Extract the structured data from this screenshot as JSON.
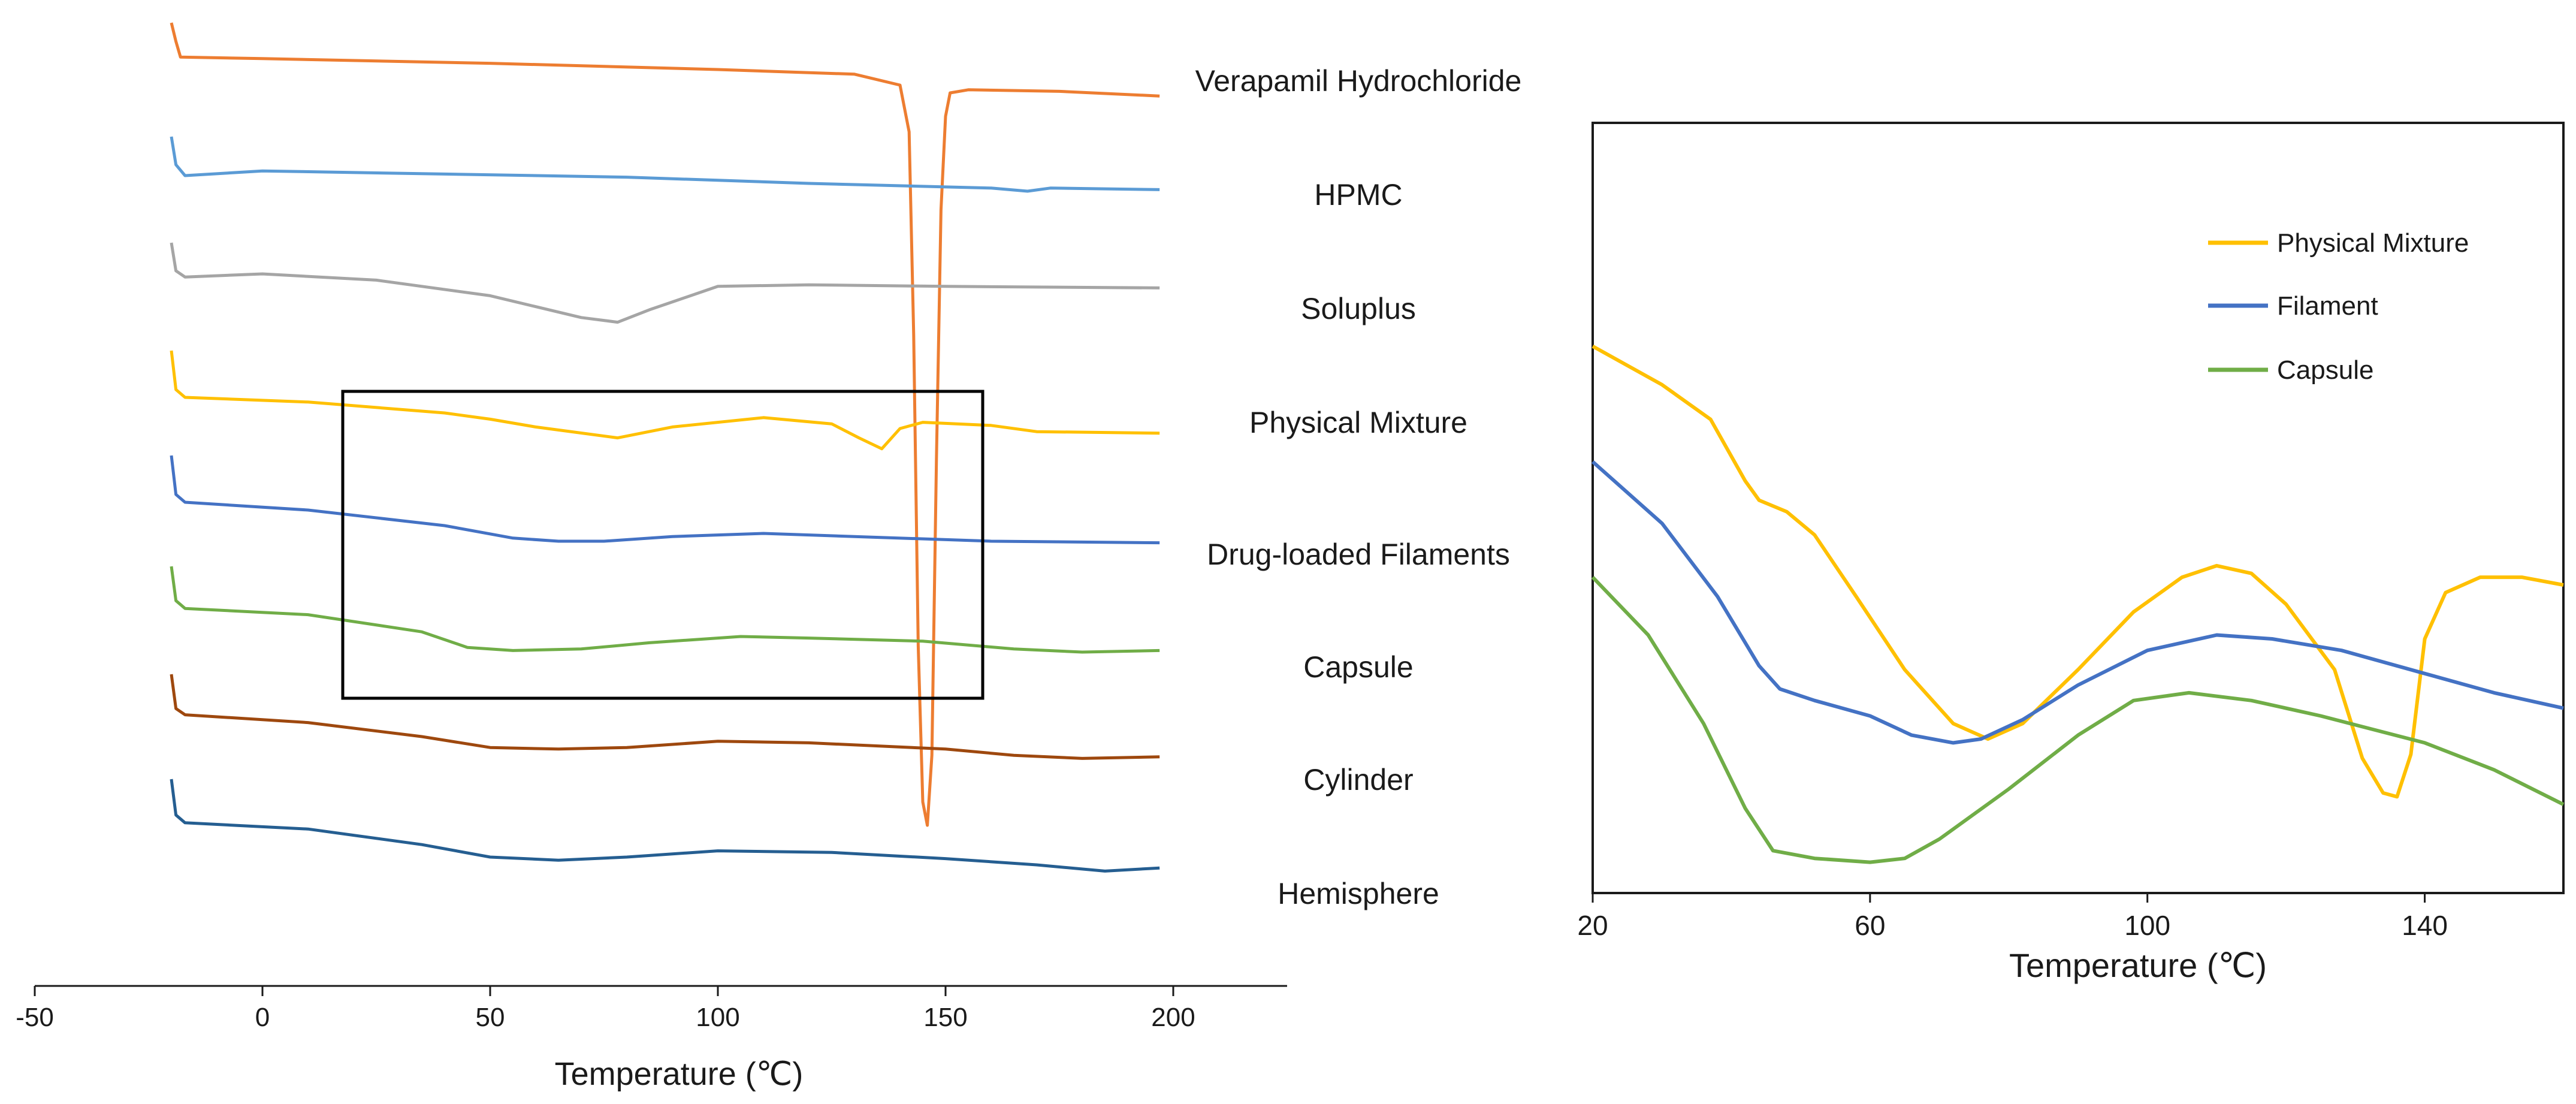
{
  "chart_data": [
    {
      "type": "line",
      "title": "",
      "xlabel": "Temperature (℃)",
      "ylabel": "",
      "xlim": [
        -50,
        225
      ],
      "xticks": [
        -50,
        0,
        50,
        100,
        150,
        200
      ],
      "grid": false,
      "box_region": {
        "x_range": [
          18,
          158
        ],
        "label": ""
      },
      "series": [
        {
          "name": "Verapamil Hydrochloride",
          "color": "#ED7D31",
          "points": [
            [
              -20,
              0
            ],
            [
              -19,
              -12
            ],
            [
              -18,
              -22
            ],
            [
              0,
              -23
            ],
            [
              50,
              -26
            ],
            [
              100,
              -30
            ],
            [
              130,
              -33
            ],
            [
              140,
              -40
            ],
            [
              142,
              -70
            ],
            [
              143,
              -200
            ],
            [
              144,
              -400
            ],
            [
              145,
              -500
            ],
            [
              146,
              -515
            ],
            [
              147,
              -470
            ],
            [
              148,
              -280
            ],
            [
              149,
              -120
            ],
            [
              150,
              -60
            ],
            [
              151,
              -45
            ],
            [
              155,
              -43
            ],
            [
              175,
              -44
            ],
            [
              197,
              -47
            ]
          ]
        },
        {
          "name": "HPMC",
          "color": "#5B9BD5",
          "points": [
            [
              -20,
              0
            ],
            [
              -19,
              -18
            ],
            [
              -17,
              -25
            ],
            [
              0,
              -22
            ],
            [
              40,
              -24
            ],
            [
              80,
              -26
            ],
            [
              100,
              -28
            ],
            [
              120,
              -30
            ],
            [
              160,
              -33
            ],
            [
              168,
              -35
            ],
            [
              173,
              -33
            ],
            [
              197,
              -34
            ]
          ]
        },
        {
          "name": "Soluplus",
          "color": "#A5A5A5",
          "points": [
            [
              -20,
              0
            ],
            [
              -19,
              -18
            ],
            [
              -17,
              -22
            ],
            [
              0,
              -20
            ],
            [
              25,
              -24
            ],
            [
              50,
              -34
            ],
            [
              70,
              -48
            ],
            [
              78,
              -51
            ],
            [
              85,
              -43
            ],
            [
              100,
              -28
            ],
            [
              120,
              -27
            ],
            [
              150,
              -28
            ],
            [
              197,
              -29
            ]
          ]
        },
        {
          "name": "Physical Mixture",
          "color": "#FFC000",
          "points": [
            [
              -20,
              0
            ],
            [
              -19,
              -25
            ],
            [
              -17,
              -30
            ],
            [
              10,
              -33
            ],
            [
              40,
              -40
            ],
            [
              50,
              -44
            ],
            [
              60,
              -49
            ],
            [
              78,
              -56
            ],
            [
              90,
              -49
            ],
            [
              110,
              -43
            ],
            [
              125,
              -47
            ],
            [
              131,
              -56
            ],
            [
              136,
              -63
            ],
            [
              140,
              -50
            ],
            [
              145,
              -46
            ],
            [
              160,
              -48
            ],
            [
              170,
              -52
            ],
            [
              197,
              -53
            ]
          ]
        },
        {
          "name": "Drug-loaded Filaments",
          "color": "#4472C4",
          "points": [
            [
              -20,
              0
            ],
            [
              -19,
              -25
            ],
            [
              -17,
              -30
            ],
            [
              10,
              -35
            ],
            [
              40,
              -45
            ],
            [
              55,
              -53
            ],
            [
              65,
              -55
            ],
            [
              75,
              -55
            ],
            [
              90,
              -52
            ],
            [
              110,
              -50
            ],
            [
              130,
              -52
            ],
            [
              160,
              -55
            ],
            [
              197,
              -56
            ]
          ]
        },
        {
          "name": "Capsule",
          "color": "#70AD47",
          "points": [
            [
              -20,
              0
            ],
            [
              -19,
              -22
            ],
            [
              -17,
              -27
            ],
            [
              10,
              -31
            ],
            [
              35,
              -42
            ],
            [
              45,
              -52
            ],
            [
              55,
              -54
            ],
            [
              70,
              -53
            ],
            [
              85,
              -49
            ],
            [
              105,
              -45
            ],
            [
              120,
              -46
            ],
            [
              145,
              -48
            ],
            [
              165,
              -53
            ],
            [
              180,
              -55
            ],
            [
              197,
              -54
            ]
          ]
        },
        {
          "name": "Cylinder",
          "color": "#9E480E",
          "points": [
            [
              -20,
              0
            ],
            [
              -19,
              -22
            ],
            [
              -17,
              -26
            ],
            [
              10,
              -31
            ],
            [
              35,
              -40
            ],
            [
              50,
              -47
            ],
            [
              65,
              -48
            ],
            [
              80,
              -47
            ],
            [
              100,
              -43
            ],
            [
              120,
              -44
            ],
            [
              150,
              -48
            ],
            [
              165,
              -52
            ],
            [
              180,
              -54
            ],
            [
              197,
              -53
            ]
          ]
        },
        {
          "name": "Hemisphere",
          "color": "#255E91",
          "points": [
            [
              -20,
              0
            ],
            [
              -19,
              -23
            ],
            [
              -17,
              -28
            ],
            [
              10,
              -32
            ],
            [
              35,
              -42
            ],
            [
              50,
              -50
            ],
            [
              65,
              -52
            ],
            [
              80,
              -50
            ],
            [
              100,
              -46
            ],
            [
              125,
              -47
            ],
            [
              150,
              -51
            ],
            [
              170,
              -55
            ],
            [
              185,
              -59
            ],
            [
              197,
              -57
            ]
          ]
        }
      ]
    },
    {
      "type": "line",
      "title": "",
      "xlabel": "Temperature (℃)",
      "ylabel": "",
      "xlim": [
        20,
        160
      ],
      "xticks": [
        20,
        60,
        100,
        140
      ],
      "ylim": [
        0,
        100
      ],
      "grid": false,
      "legend_position": "top-right",
      "series": [
        {
          "name": "Physical Mixture",
          "color": "#FFC000",
          "points": [
            [
              20,
              71
            ],
            [
              30,
              66
            ],
            [
              37,
              61.5
            ],
            [
              42,
              53.5
            ],
            [
              44,
              51
            ],
            [
              48,
              49.5
            ],
            [
              52,
              46.5
            ],
            [
              58,
              38.5
            ],
            [
              65,
              29
            ],
            [
              72,
              22
            ],
            [
              77,
              20
            ],
            [
              82,
              22
            ],
            [
              90,
              29
            ],
            [
              98,
              36.5
            ],
            [
              105,
              41
            ],
            [
              110,
              42.5
            ],
            [
              115,
              41.5
            ],
            [
              120,
              37.5
            ],
            [
              127,
              29
            ],
            [
              131,
              17.5
            ],
            [
              134,
              13
            ],
            [
              136,
              12.5
            ],
            [
              138,
              18
            ],
            [
              140,
              33
            ],
            [
              143,
              39
            ],
            [
              148,
              41
            ],
            [
              154,
              41
            ],
            [
              160,
              40
            ]
          ]
        },
        {
          "name": "Filament",
          "color": "#4472C4",
          "points": [
            [
              20,
              56
            ],
            [
              30,
              48
            ],
            [
              38,
              38.5
            ],
            [
              44,
              29.5
            ],
            [
              47,
              26.5
            ],
            [
              52,
              25
            ],
            [
              60,
              23
            ],
            [
              66,
              20.5
            ],
            [
              72,
              19.5
            ],
            [
              76,
              20
            ],
            [
              82,
              22.5
            ],
            [
              90,
              27
            ],
            [
              100,
              31.5
            ],
            [
              110,
              33.5
            ],
            [
              118,
              33
            ],
            [
              128,
              31.5
            ],
            [
              140,
              28.5
            ],
            [
              150,
              26
            ],
            [
              160,
              24
            ]
          ]
        },
        {
          "name": "Capsule",
          "color": "#70AD47",
          "points": [
            [
              20,
              41
            ],
            [
              28,
              33.5
            ],
            [
              36,
              22
            ],
            [
              42,
              11
            ],
            [
              46,
              5.5
            ],
            [
              52,
              4.5
            ],
            [
              60,
              4
            ],
            [
              65,
              4.5
            ],
            [
              70,
              7
            ],
            [
              80,
              13.5
            ],
            [
              90,
              20.5
            ],
            [
              98,
              25
            ],
            [
              106,
              26
            ],
            [
              115,
              25
            ],
            [
              125,
              23
            ],
            [
              140,
              19.5
            ],
            [
              150,
              16
            ],
            [
              160,
              11.5
            ]
          ]
        }
      ]
    }
  ]
}
